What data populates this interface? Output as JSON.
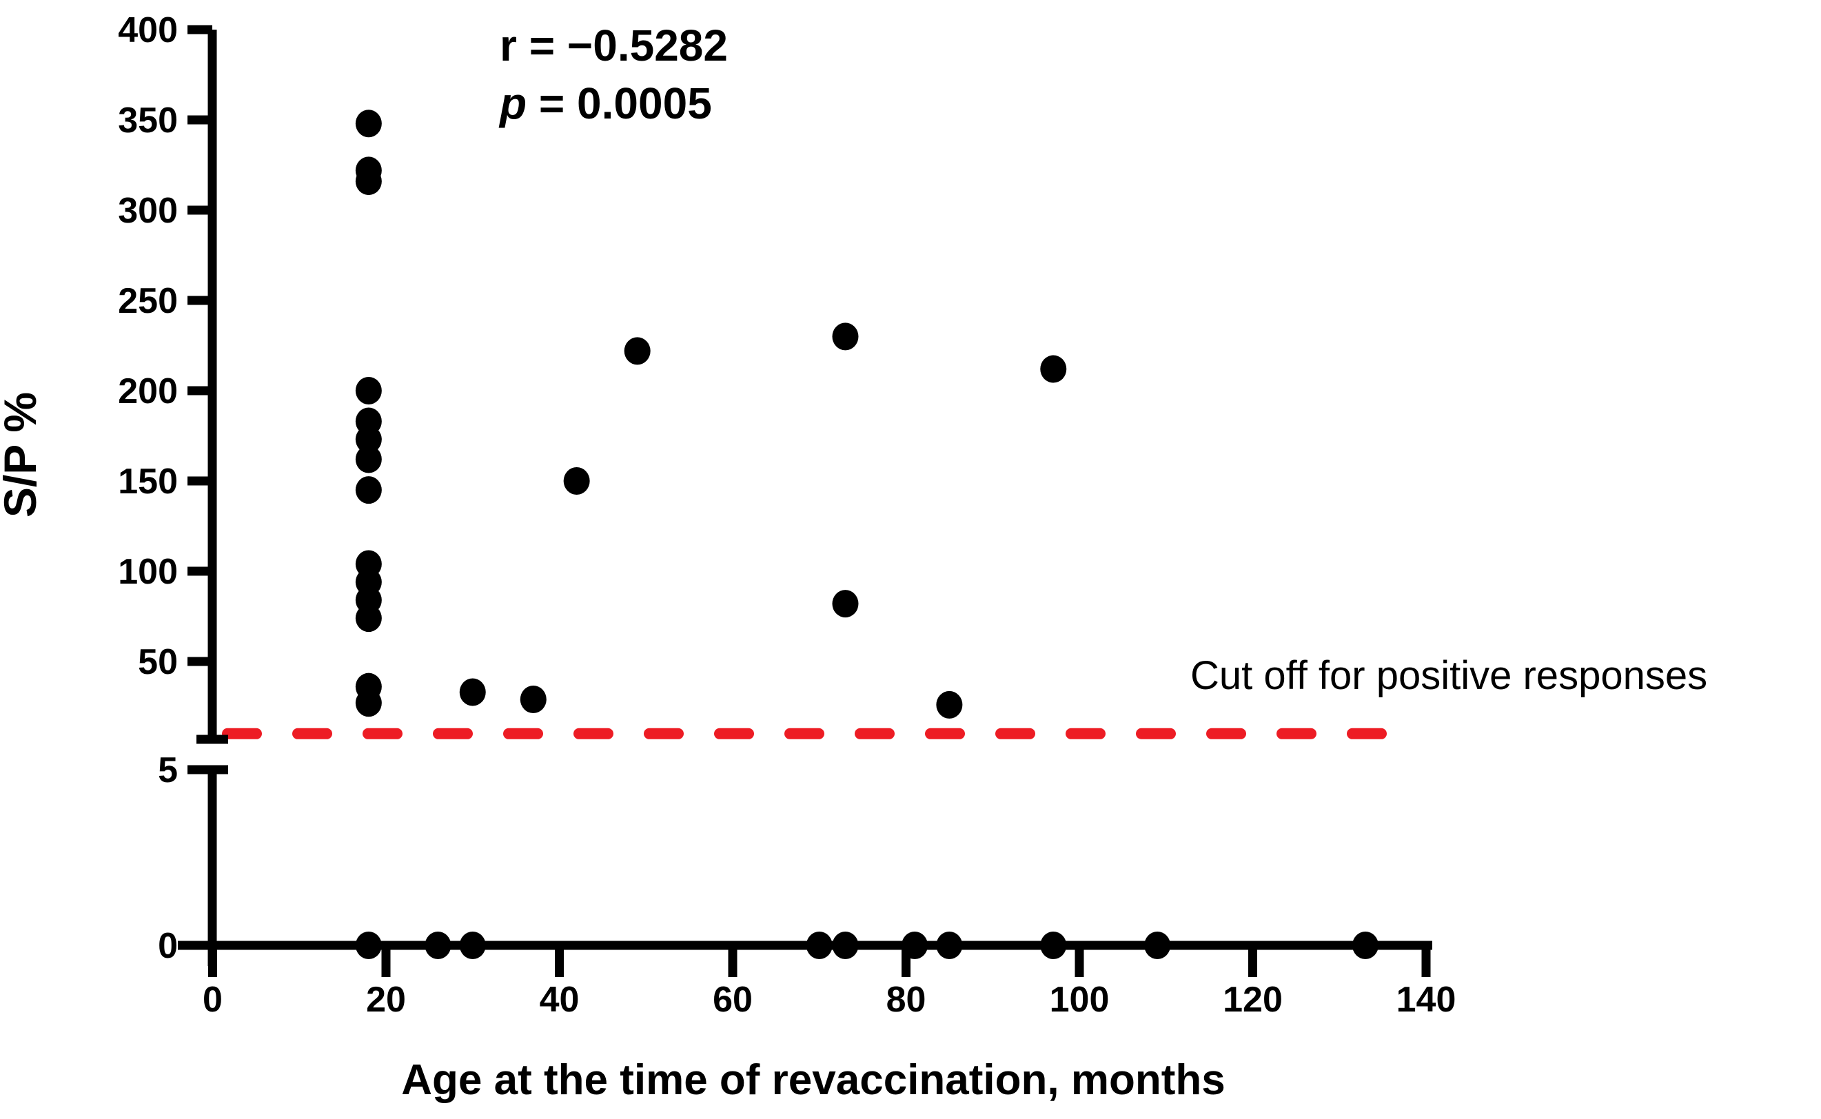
{
  "figure": {
    "background_color": "#ffffff",
    "point_color": "#000000",
    "axis_color": "#000000"
  },
  "chart_data": {
    "type": "scatter",
    "title": "",
    "xlabel": "Age at the time of revaccination, months",
    "ylabel": "S/P %",
    "grid": false,
    "legend": "none",
    "annotation": {
      "r_symbol": "r",
      "r_rest": " = −0.5282",
      "p_symbol": "p",
      "p_rest": " = 0.0005"
    },
    "cutoff": {
      "label": "Cut off for positive responses",
      "value": 10,
      "color": "#ed1c24",
      "style": "dashed"
    },
    "x_axis": {
      "min": 0,
      "max": 140,
      "tick_step": 20,
      "tick_labels": [
        "0",
        "20",
        "40",
        "60",
        "80",
        "100",
        "120",
        "140"
      ]
    },
    "y_axis_upper_segment": {
      "min": 8,
      "max": 400,
      "tick_labels": [
        "400",
        "350",
        "300",
        "250",
        "200",
        "150",
        "100",
        "50"
      ]
    },
    "y_axis_lower_segment": {
      "min": 0,
      "max": 5,
      "tick_labels": [
        "5",
        "0"
      ]
    },
    "broken_y_axis": true,
    "points": [
      [
        18,
        348
      ],
      [
        18,
        322
      ],
      [
        18,
        316
      ],
      [
        18,
        200
      ],
      [
        18,
        183
      ],
      [
        18,
        173
      ],
      [
        18,
        162
      ],
      [
        18,
        145
      ],
      [
        18,
        104
      ],
      [
        18,
        94
      ],
      [
        18,
        84
      ],
      [
        18,
        74
      ],
      [
        18,
        36
      ],
      [
        18,
        27
      ],
      [
        30,
        33
      ],
      [
        37,
        29
      ],
      [
        42,
        150
      ],
      [
        49,
        222
      ],
      [
        73,
        230
      ],
      [
        73,
        82
      ],
      [
        85,
        26
      ],
      [
        97,
        212
      ],
      [
        18,
        0
      ],
      [
        26,
        0
      ],
      [
        30,
        0
      ],
      [
        70,
        0
      ],
      [
        73,
        0
      ],
      [
        81,
        0
      ],
      [
        85,
        0
      ],
      [
        97,
        0
      ],
      [
        109,
        0
      ],
      [
        133,
        0
      ]
    ]
  }
}
